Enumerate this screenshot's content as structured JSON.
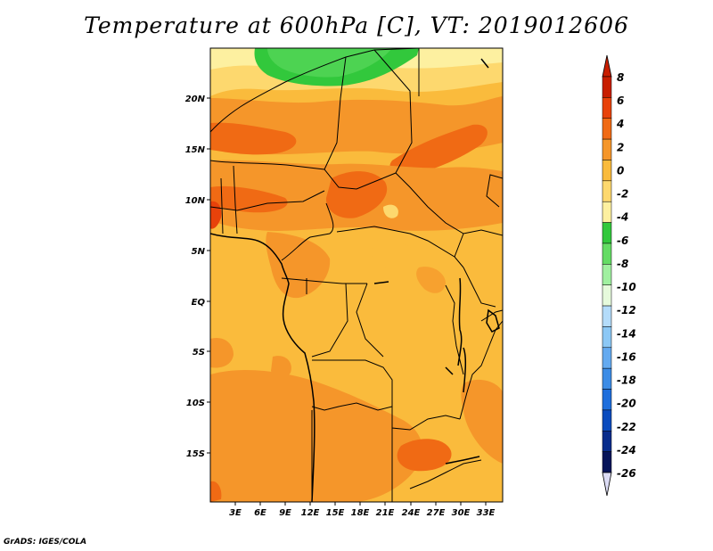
{
  "title": "Temperature at 600hPa [C], VT: 2019012606",
  "footer": "GrADS: IGES/COLA",
  "map": {
    "lat_labels": [
      "20N",
      "15N",
      "10N",
      "5N",
      "EQ",
      "5S",
      "10S",
      "15S"
    ],
    "lon_labels": [
      "3E",
      "6E",
      "9E",
      "12E",
      "15E",
      "18E",
      "21E",
      "24E",
      "27E",
      "30E",
      "33E"
    ],
    "lat_range": [
      -20,
      24
    ],
    "lon_range": [
      0,
      35
    ]
  },
  "colorbar": {
    "labels": [
      "8",
      "6",
      "4",
      "2",
      "0",
      "-2",
      "-4",
      "-6",
      "-8",
      "-10",
      "-12",
      "-14",
      "-16",
      "-18",
      "-20",
      "-22",
      "-24",
      "-26"
    ],
    "colors": [
      "#c81e00",
      "#e8420a",
      "#f06a14",
      "#f5962a",
      "#fabb3c",
      "#fdd86e",
      "#fdf0a0",
      "#32c83c",
      "#64dc64",
      "#a0f0a0",
      "#e6fadc",
      "#b4dcfa",
      "#8cc8f5",
      "#64aaf0",
      "#3c8ce6",
      "#1e6edc",
      "#0a4bbe",
      "#082c8c",
      "#06145a",
      "#dcdcf5"
    ]
  }
}
